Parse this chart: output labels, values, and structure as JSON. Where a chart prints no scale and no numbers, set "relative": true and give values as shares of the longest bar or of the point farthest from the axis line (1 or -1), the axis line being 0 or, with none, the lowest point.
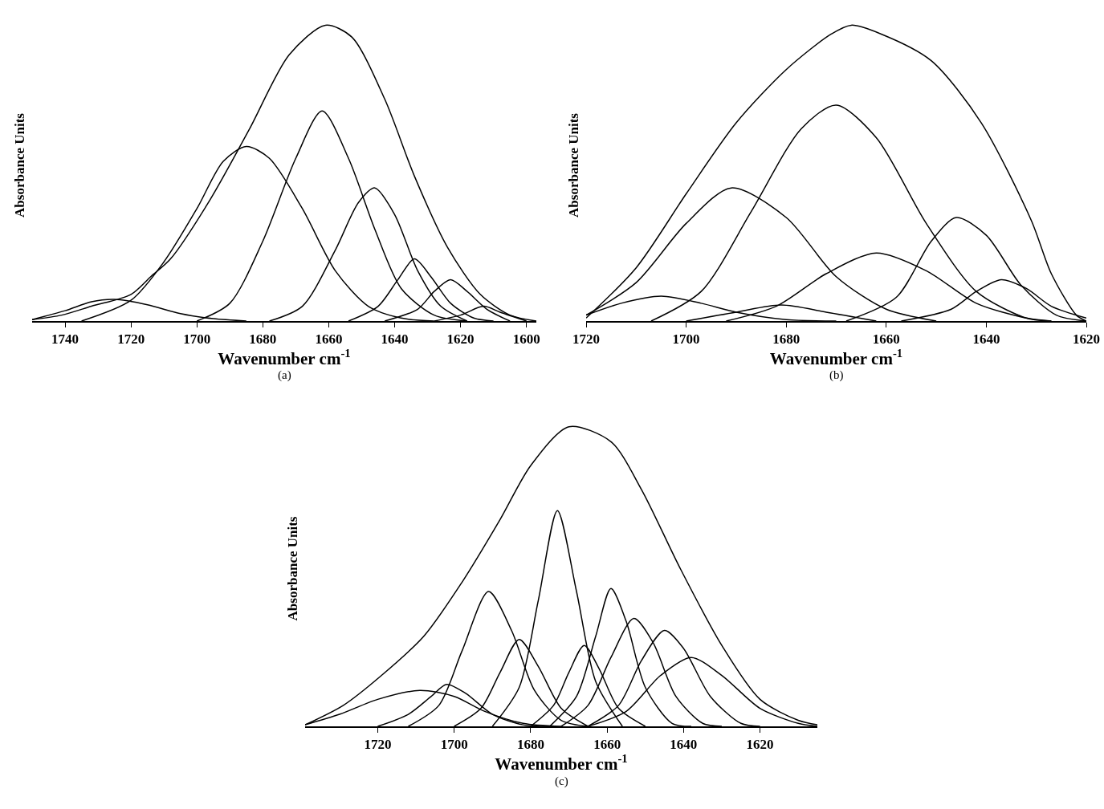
{
  "chart_data": [
    {
      "type": "line",
      "relative": true,
      "xlabel": "Wavenumber cm$^{-1}$",
      "ylabel": "Absorbance Units",
      "annotations": [
        "(a)"
      ],
      "xlim": [
        1750,
        1597
      ],
      "xticks": [
        1740,
        1720,
        1700,
        1680,
        1660,
        1640,
        1620,
        1600
      ],
      "series": [
        {
          "color": "#000000",
          "x": [
            1750,
            1741,
            1732,
            1720,
            1714,
            1708,
            1696,
            1684,
            1672,
            1661,
            1653,
            1643,
            1634,
            1624,
            1614,
            1605,
            1597
          ],
          "values": [
            0.005,
            0.02,
            0.05,
            0.09,
            0.15,
            0.21,
            0.41,
            0.65,
            0.9,
            1,
            0.96,
            0.75,
            0.49,
            0.25,
            0.09,
            0.02,
            0
          ]
        },
        {
          "color": "#000000",
          "x": [
            1750,
            1740,
            1732,
            1725,
            1715,
            1705,
            1695,
            1685
          ],
          "values": [
            0.005,
            0.035,
            0.065,
            0.073,
            0.055,
            0.025,
            0.008,
            0
          ]
        },
        {
          "color": "#000000",
          "x": [
            1735,
            1720,
            1710,
            1700,
            1692,
            1685,
            1678,
            1668,
            1658,
            1648,
            1638,
            1628
          ],
          "values": [
            0,
            0.07,
            0.2,
            0.38,
            0.54,
            0.59,
            0.55,
            0.38,
            0.17,
            0.05,
            0.01,
            0
          ]
        },
        {
          "color": "#000000",
          "x": [
            1700,
            1690,
            1680,
            1670,
            1662,
            1654,
            1646,
            1638,
            1628,
            1618
          ],
          "values": [
            0,
            0.06,
            0.27,
            0.55,
            0.71,
            0.55,
            0.31,
            0.11,
            0.02,
            0
          ]
        },
        {
          "color": "#000000",
          "x": [
            1678,
            1668,
            1658,
            1651,
            1646,
            1640,
            1633,
            1626,
            1618
          ],
          "values": [
            0,
            0.05,
            0.24,
            0.4,
            0.45,
            0.36,
            0.17,
            0.05,
            0
          ]
        },
        {
          "color": "#000000",
          "x": [
            1654,
            1645,
            1639,
            1634,
            1629,
            1623,
            1616,
            1610
          ],
          "values": [
            0,
            0.05,
            0.14,
            0.21,
            0.15,
            0.06,
            0.01,
            0
          ]
        },
        {
          "color": "#000000",
          "x": [
            1643,
            1633,
            1628,
            1623,
            1618,
            1612,
            1605
          ],
          "values": [
            0,
            0.04,
            0.1,
            0.14,
            0.1,
            0.04,
            0
          ]
        },
        {
          "color": "#000000",
          "x": [
            1628,
            1620,
            1613,
            1608,
            1600
          ],
          "values": [
            0,
            0.02,
            0.05,
            0.03,
            0
          ]
        }
      ]
    },
    {
      "type": "line",
      "relative": true,
      "xlabel": "Wavenumber cm$^{-1}$",
      "ylabel": "Absorbance Units",
      "annotations": [
        "(b)"
      ],
      "xlim": [
        1720,
        1620
      ],
      "xticks": [
        1720,
        1700,
        1680,
        1660,
        1640,
        1620
      ],
      "series": [
        {
          "color": "#000000",
          "x": [
            1720,
            1710,
            1700,
            1690,
            1680,
            1671,
            1667,
            1661,
            1651,
            1641,
            1631,
            1627,
            1622,
            1620
          ],
          "values": [
            0.01,
            0.18,
            0.43,
            0.67,
            0.85,
            0.97,
            1,
            0.97,
            0.88,
            0.67,
            0.34,
            0.16,
            0.02,
            0
          ]
        },
        {
          "color": "#000000",
          "x": [
            1720,
            1713,
            1705,
            1697,
            1690,
            1680,
            1670
          ],
          "values": [
            0.02,
            0.06,
            0.084,
            0.06,
            0.03,
            0.005,
            0
          ]
        },
        {
          "color": "#000000",
          "x": [
            1720,
            1710,
            1700,
            1691,
            1680,
            1670,
            1660,
            1650
          ],
          "values": [
            0.02,
            0.13,
            0.33,
            0.45,
            0.35,
            0.15,
            0.04,
            0
          ]
        },
        {
          "color": "#000000",
          "x": [
            1700,
            1690,
            1681,
            1672,
            1662
          ],
          "values": [
            0,
            0.03,
            0.054,
            0.03,
            0
          ]
        },
        {
          "color": "#000000",
          "x": [
            1707,
            1697,
            1687,
            1677,
            1670,
            1662,
            1652,
            1642,
            1632,
            1627
          ],
          "values": [
            0,
            0.1,
            0.37,
            0.65,
            0.73,
            0.62,
            0.33,
            0.1,
            0.01,
            0
          ]
        },
        {
          "color": "#000000",
          "x": [
            1692,
            1682,
            1672,
            1662,
            1652,
            1642,
            1632,
            1627
          ],
          "values": [
            0,
            0.05,
            0.16,
            0.23,
            0.17,
            0.06,
            0.01,
            0
          ]
        },
        {
          "color": "#000000",
          "x": [
            1668,
            1658,
            1651,
            1646,
            1640,
            1633,
            1626,
            1620
          ],
          "values": [
            0,
            0.08,
            0.27,
            0.35,
            0.29,
            0.12,
            0.02,
            0
          ]
        },
        {
          "color": "#000000",
          "x": [
            1657,
            1647,
            1642,
            1637,
            1632,
            1627,
            1620
          ],
          "values": [
            0,
            0.04,
            0.1,
            0.14,
            0.11,
            0.05,
            0.01
          ]
        }
      ]
    },
    {
      "type": "line",
      "relative": true,
      "xlabel": "Wavenumber cm$^{-1}$",
      "ylabel": "Absorbance Units",
      "annotations": [
        "(c)"
      ],
      "xlim": [
        1739,
        1605
      ],
      "xticks": [
        1720,
        1700,
        1680,
        1660,
        1640,
        1620
      ],
      "series": [
        {
          "color": "#000000",
          "x": [
            1739,
            1729,
            1719,
            1708,
            1698,
            1688,
            1680,
            1670,
            1659,
            1651,
            1641,
            1630,
            1620,
            1610,
            1605
          ],
          "values": [
            0.005,
            0.07,
            0.17,
            0.3,
            0.48,
            0.69,
            0.87,
            1,
            0.95,
            0.79,
            0.53,
            0.27,
            0.09,
            0.02,
            0.005
          ]
        },
        {
          "color": "#000000",
          "x": [
            1739,
            1730,
            1720,
            1709,
            1700,
            1692,
            1682,
            1672
          ],
          "values": [
            0.005,
            0.04,
            0.09,
            0.12,
            0.1,
            0.05,
            0.01,
            0
          ]
        },
        {
          "color": "#000000",
          "x": [
            1720,
            1712,
            1706,
            1702,
            1697,
            1690,
            1682,
            1675
          ],
          "values": [
            0,
            0.04,
            0.1,
            0.14,
            0.11,
            0.04,
            0.005,
            0
          ]
        },
        {
          "color": "#000000",
          "x": [
            1712,
            1704,
            1698,
            1691,
            1685,
            1679,
            1672,
            1665
          ],
          "values": [
            0,
            0.07,
            0.25,
            0.45,
            0.32,
            0.12,
            0.02,
            0
          ]
        },
        {
          "color": "#000000",
          "x": [
            1700,
            1693,
            1688,
            1683,
            1678,
            1672,
            1665
          ],
          "values": [
            0,
            0.06,
            0.18,
            0.29,
            0.2,
            0.06,
            0
          ]
        },
        {
          "color": "#000000",
          "x": [
            1690,
            1683,
            1678,
            1673,
            1668,
            1663,
            1656
          ],
          "values": [
            0,
            0.13,
            0.42,
            0.72,
            0.45,
            0.15,
            0
          ]
        },
        {
          "color": "#000000",
          "x": [
            1680,
            1674,
            1670,
            1666,
            1662,
            1657,
            1650
          ],
          "values": [
            0,
            0.07,
            0.18,
            0.27,
            0.19,
            0.06,
            0
          ]
        },
        {
          "color": "#000000",
          "x": [
            1675,
            1668,
            1663,
            1659,
            1655,
            1650,
            1643,
            1638
          ],
          "values": [
            0,
            0.1,
            0.3,
            0.46,
            0.35,
            0.13,
            0.01,
            0
          ]
        },
        {
          "color": "#000000",
          "x": [
            1672,
            1665,
            1659,
            1653,
            1648,
            1642,
            1635,
            1630
          ],
          "values": [
            0,
            0.07,
            0.23,
            0.36,
            0.28,
            0.1,
            0.01,
            0
          ]
        },
        {
          "color": "#000000",
          "x": [
            1665,
            1657,
            1651,
            1645,
            1640,
            1633,
            1625,
            1620
          ],
          "values": [
            0,
            0.07,
            0.22,
            0.32,
            0.26,
            0.1,
            0.01,
            0
          ]
        },
        {
          "color": "#000000",
          "x": [
            1665,
            1655,
            1646,
            1638,
            1630,
            1620,
            1610,
            1605
          ],
          "values": [
            0,
            0.05,
            0.17,
            0.23,
            0.17,
            0.06,
            0.01,
            0
          ]
        }
      ]
    }
  ]
}
